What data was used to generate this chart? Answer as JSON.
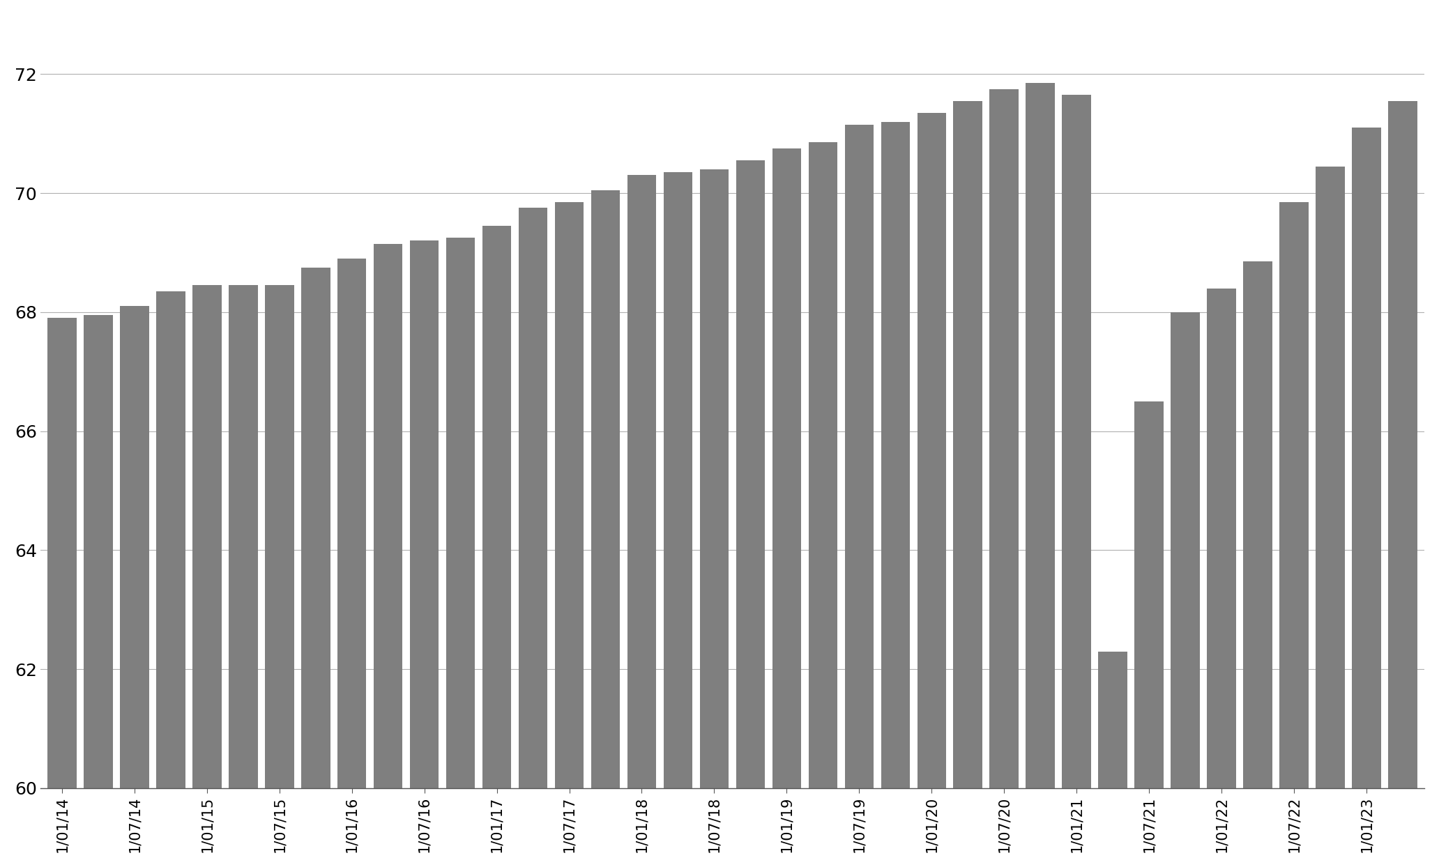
{
  "labels_xtick": [
    "1/01/14",
    "1/07/14",
    "1/01/15",
    "1/07/15",
    "1/01/16",
    "1/07/16",
    "1/01/17",
    "1/07/17",
    "1/01/18",
    "1/07/18",
    "1/01/19",
    "1/07/19",
    "1/01/20",
    "1/07/20",
    "1/01/21",
    "1/07/21",
    "1/01/22",
    "1/07/22",
    "1/01/23"
  ],
  "values": [
    67.9,
    67.95,
    68.1,
    68.35,
    68.45,
    68.45,
    68.45,
    68.75,
    68.9,
    69.15,
    69.2,
    69.25,
    69.45,
    69.75,
    69.85,
    70.05,
    70.3,
    70.35,
    70.4,
    70.55,
    70.75,
    70.85,
    71.15,
    71.2,
    71.35,
    71.55,
    71.75,
    71.85,
    71.65,
    62.3,
    66.5,
    68.0,
    68.4,
    68.85,
    69.85,
    70.45,
    71.1,
    71.55
  ],
  "bar_color": "#7f7f7f",
  "ylim_min": 60,
  "ylim_max": 73.0,
  "yticks": [
    60,
    62,
    64,
    66,
    68,
    70,
    72
  ],
  "background_color": "#ffffff",
  "grid_color": "#b0b0b0",
  "bar_width": 0.8
}
